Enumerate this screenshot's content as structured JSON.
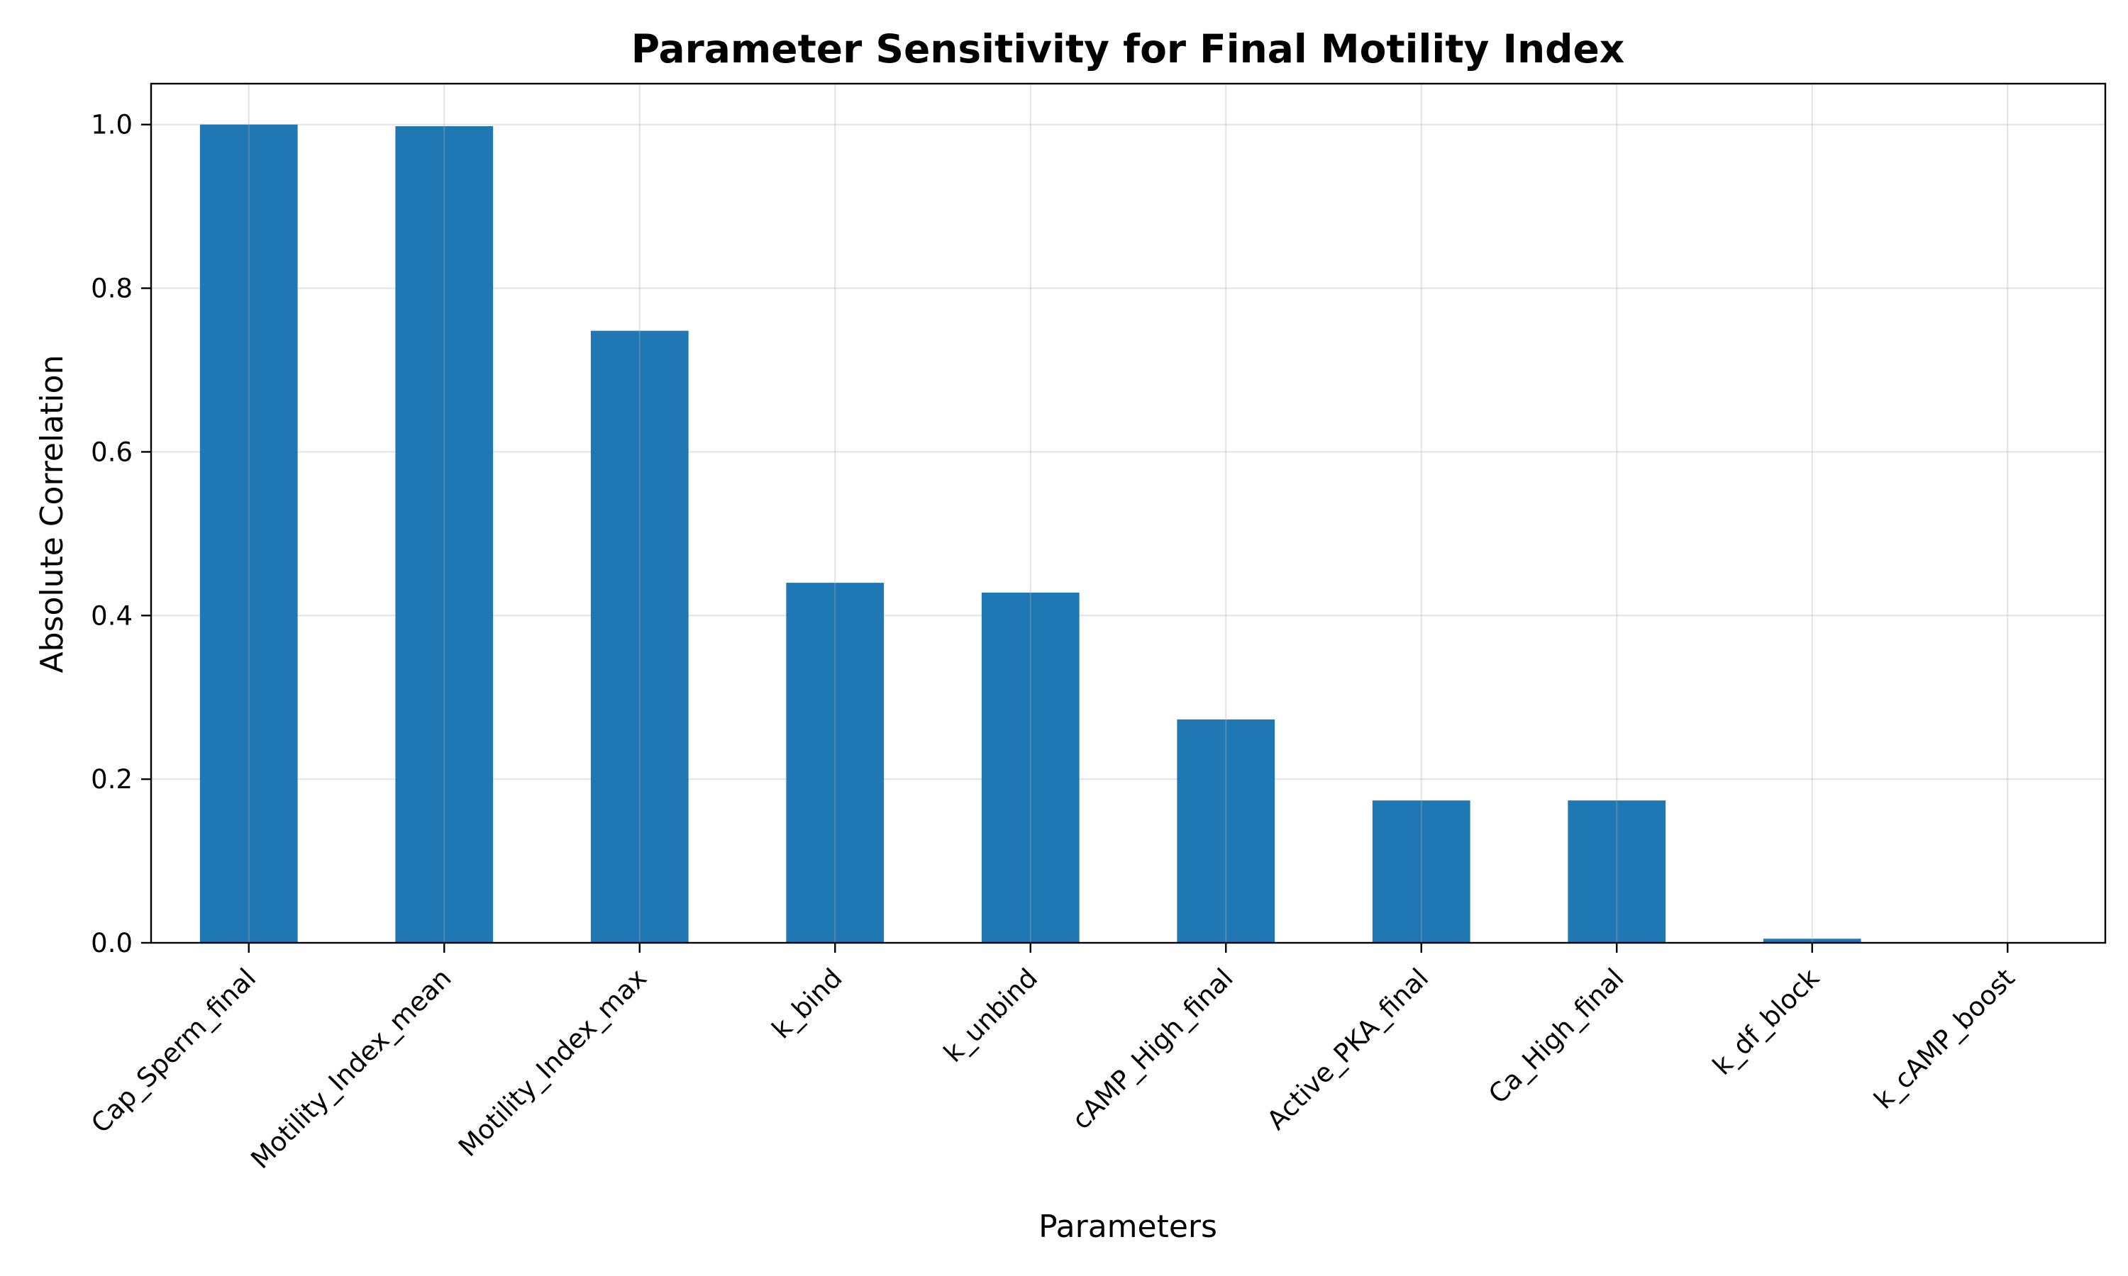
{
  "chart_data": {
    "type": "bar",
    "title": "Parameter Sensitivity for Final Motility Index",
    "xlabel": "Parameters",
    "ylabel": "Absolute Correlation",
    "categories": [
      "Cap_Sperm_final",
      "Motility_Index_mean",
      "Motility_Index_max",
      "k_bind",
      "k_unbind",
      "cAMP_High_final",
      "Active_PKA_final",
      "Ca_High_final",
      "k_df_block",
      "k_cAMP_boost"
    ],
    "values": [
      1.0,
      0.998,
      0.748,
      0.44,
      0.428,
      0.273,
      0.174,
      0.174,
      0.005,
      0.0
    ],
    "ylim": [
      0,
      1.05
    ],
    "yticks": [
      0.0,
      0.2,
      0.4,
      0.6,
      0.8,
      1.0
    ],
    "ytick_labels": [
      "0.0",
      "0.2",
      "0.4",
      "0.6",
      "0.8",
      "1.0"
    ],
    "grid": true,
    "bar_color": "#1f77b4",
    "grid_color": "#b0b0b0"
  }
}
